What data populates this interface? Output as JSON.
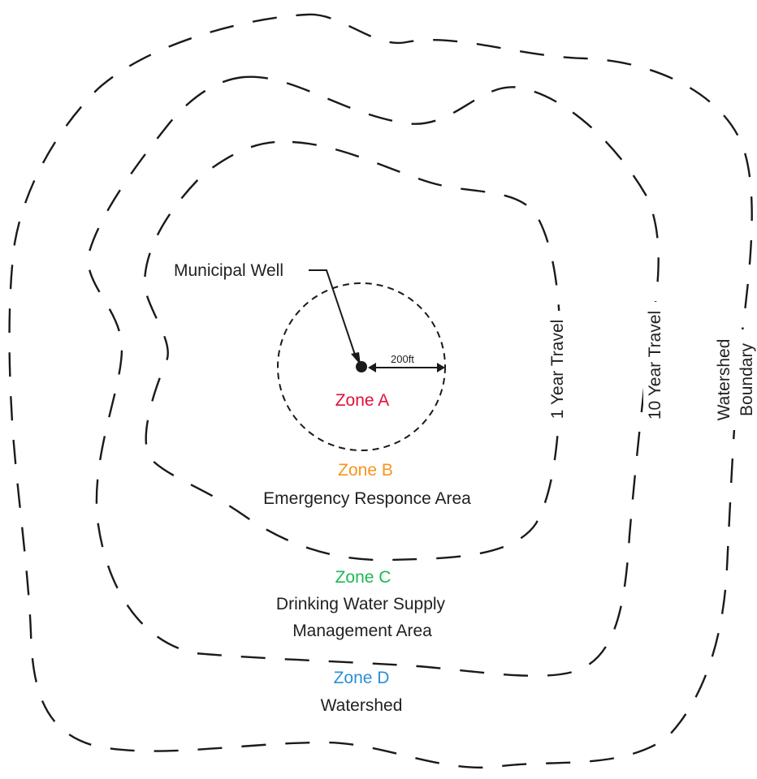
{
  "labels": {
    "municipal_well": "Municipal Well",
    "radius": "200ft",
    "one_year": "1 Year Travel",
    "ten_year": "10 Year Travel",
    "watershed_boundary_line1": "Watershed",
    "watershed_boundary_line2": "Boundary"
  },
  "zones": {
    "a": {
      "name": "Zone A",
      "color": "#e0103a"
    },
    "b": {
      "name": "Zone B",
      "color": "#f7941d",
      "desc": "Emergency Responce Area"
    },
    "c": {
      "name": "Zone C",
      "color": "#1db954",
      "desc_line1": "Drinking Water Supply",
      "desc_line2": "Management Area"
    },
    "d": {
      "name": "Zone D",
      "color": "#2b8fd6",
      "desc": "Watershed"
    }
  }
}
